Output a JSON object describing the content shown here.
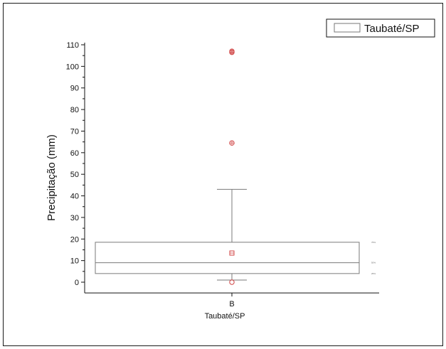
{
  "chart_data": {
    "type": "box",
    "ylabel": "Precipitação (mm)",
    "xlabel": "Taubaté/SP",
    "ylim": [
      -5,
      110
    ],
    "yticks": [
      0,
      10,
      20,
      30,
      40,
      50,
      60,
      70,
      80,
      90,
      100,
      110
    ],
    "categories": [
      "B"
    ],
    "legend": {
      "label": "Taubaté/SP",
      "placement": "top-right"
    },
    "series": [
      {
        "name": "Taubaté/SP",
        "category": "B",
        "whisker_low": 1,
        "q1": 4,
        "median": 9,
        "q3": 18.5,
        "whisker_high": 43,
        "mean": 13.5,
        "min": 0,
        "outliers": [
          64.5,
          106.5,
          107
        ],
        "percentile_labels": [
          "75%",
          "50%",
          "25%"
        ]
      }
    ],
    "colors": {
      "box": "#7a7a7a",
      "markers": "#d04545",
      "axis": "#111111"
    }
  }
}
